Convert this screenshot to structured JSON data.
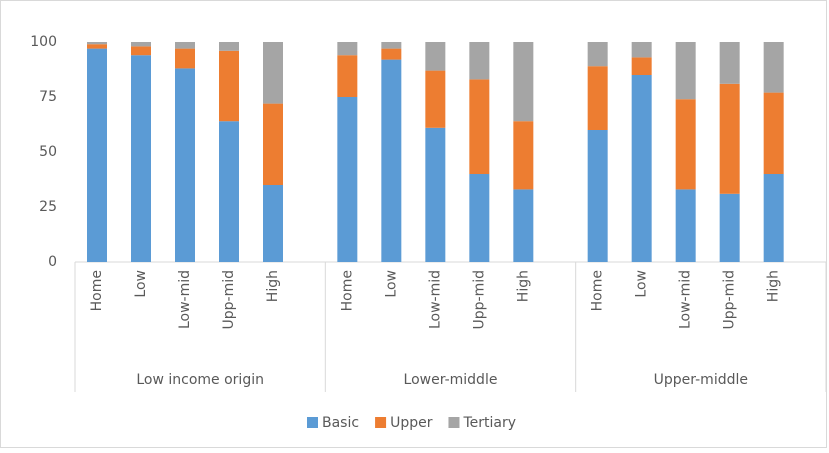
{
  "chart_data": {
    "type": "stacked_bar",
    "groups": [
      "Low income origin",
      "Lower-middle",
      "Upper-middle"
    ],
    "categories": [
      "Home",
      "Low",
      "Low-mid",
      "Upp-mid",
      "High",
      "Home",
      "Low",
      "Low-mid",
      "Upp-mid",
      "High",
      "Home",
      "Low",
      "Low-mid",
      "Upp-mid",
      "High"
    ],
    "series": [
      {
        "name": "Basic",
        "color": "#5b9bd5",
        "values": [
          97,
          94,
          88,
          64,
          35,
          75,
          92,
          61,
          40,
          33,
          60,
          85,
          33,
          31,
          40
        ]
      },
      {
        "name": "Upper",
        "color": "#ed7d31",
        "values": [
          2,
          4,
          9,
          32,
          37,
          19,
          5,
          26,
          43,
          31,
          29,
          8,
          41,
          50,
          37
        ]
      },
      {
        "name": "Tertiary",
        "color": "#a5a5a5",
        "values": [
          1,
          2,
          3,
          4,
          28,
          6,
          3,
          13,
          17,
          36,
          11,
          7,
          26,
          19,
          23
        ]
      }
    ],
    "ylim": [
      0,
      100
    ],
    "yticks": [
      0,
      25,
      50,
      75,
      100
    ],
    "grid": false,
    "legend": "bottom"
  }
}
